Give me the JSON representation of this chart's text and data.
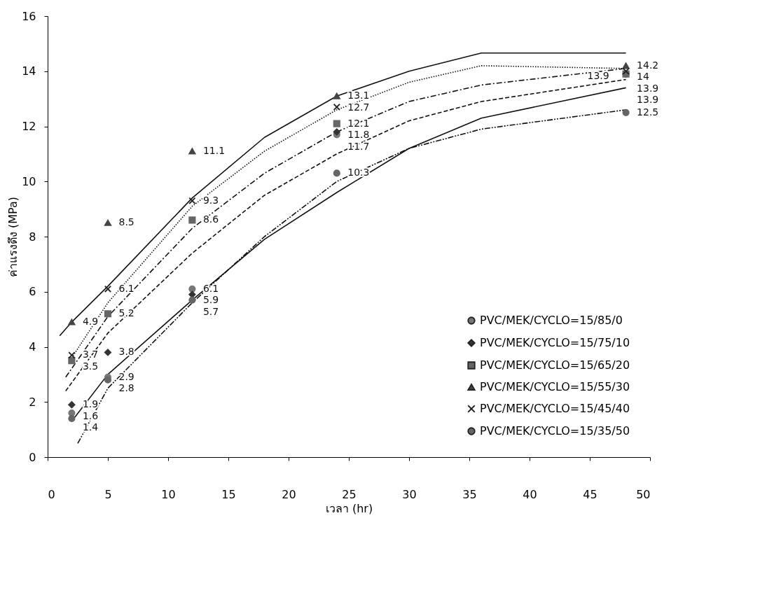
{
  "chart_data": {
    "type": "scatter",
    "xlabel": "เวลา (hr)",
    "ylabel": "ค่าแรงดึง (MPa)",
    "x": [
      2,
      5,
      12,
      24,
      48
    ],
    "xlim": [
      0,
      50
    ],
    "xticks": [
      0,
      5,
      10,
      15,
      20,
      25,
      30,
      35,
      40,
      45,
      50
    ],
    "ylim": [
      0,
      16
    ],
    "yticks": [
      0,
      2,
      4,
      6,
      8,
      10,
      12,
      14,
      16
    ],
    "grid": false,
    "legend": "bottom right",
    "series": [
      {
        "name": "PVC/MEK/CYCLO=15/85/0",
        "color": "#777777",
        "marker": "circle",
        "values": [
          1.6,
          2.9,
          6.1,
          11.7,
          13.9
        ],
        "value_labels": [
          "1.6",
          "2.9",
          "6.1",
          "11.7",
          "13.9"
        ]
      },
      {
        "name": "PVC/MEK/CYCLO=15/75/10",
        "color": "#333333",
        "marker": "diamond",
        "values": [
          1.9,
          3.8,
          5.9,
          11.8,
          13.9
        ],
        "value_labels": [
          "1.9",
          "3.8",
          "5.9",
          "11.8",
          "13.9"
        ]
      },
      {
        "name": "PVC/MEK/CYCLO=15/65/20",
        "color": "#666666",
        "marker": "square",
        "values": [
          3.5,
          5.2,
          8.6,
          12.1,
          13.9
        ],
        "value_labels": [
          "3.5",
          "5.2",
          "8.6",
          "12.1",
          "13.9"
        ]
      },
      {
        "name": "PVC/MEK/CYCLO=15/55/30",
        "color": "#444444",
        "marker": "triangle",
        "values": [
          4.9,
          8.5,
          11.1,
          13.1,
          14.2
        ],
        "value_labels": [
          "4.9",
          "8.5",
          "11.1",
          "13.1",
          "14.2"
        ]
      },
      {
        "name": "PVC/MEK/CYCLO=15/45/40",
        "color": "#222222",
        "marker": "cross",
        "values": [
          3.7,
          6.1,
          9.3,
          12.7,
          14
        ],
        "value_labels": [
          "3.7",
          "6.1",
          "9.3",
          "12.7",
          "14"
        ]
      },
      {
        "name": "PVC/MEK/CYCLO=15/35/50",
        "color": "#666666",
        "marker": "circle",
        "values": [
          1.4,
          2.8,
          5.7,
          10.3,
          12.5
        ],
        "value_labels": [
          "1.4",
          "2.8",
          "5.7",
          "10.3",
          "12.5"
        ]
      },
      {
        "type": "line",
        "color": "#111111",
        "line_style": "solid",
        "x": [
          2,
          5,
          12,
          18,
          24,
          30,
          36,
          48
        ],
        "values": [
          1.3,
          3.0,
          5.7,
          7.9,
          9.6,
          11.2,
          12.3,
          13.4
        ]
      },
      {
        "type": "line",
        "color": "#111111",
        "line_style": "dashed",
        "x": [
          1.5,
          5,
          12,
          18,
          24,
          30,
          36,
          48
        ],
        "values": [
          2.4,
          4.5,
          7.4,
          9.5,
          11.0,
          12.2,
          12.9,
          13.7
        ]
      },
      {
        "type": "line",
        "color": "#111111",
        "line_style": "dashdot",
        "x": [
          1.5,
          5,
          12,
          18,
          24,
          30,
          36,
          48
        ],
        "values": [
          2.9,
          5.1,
          8.3,
          10.3,
          11.8,
          12.9,
          13.5,
          14.1
        ]
      },
      {
        "type": "line",
        "color": "#111111",
        "line_style": "solid",
        "x": [
          1,
          2,
          5,
          12,
          18,
          24,
          30,
          36,
          48
        ],
        "values": [
          4.4,
          4.9,
          6.2,
          9.4,
          11.6,
          13.1,
          14.0,
          14.66,
          14.66
        ]
      },
      {
        "type": "line",
        "color": "#111111",
        "line_style": "dotted",
        "x": [
          2,
          5,
          12,
          18,
          24,
          30,
          36,
          48
        ],
        "values": [
          3.6,
          5.6,
          9.1,
          11.1,
          12.6,
          13.6,
          14.2,
          14.1
        ]
      },
      {
        "type": "line",
        "color": "#111111",
        "line_style": "dashdotdot",
        "x": [
          2.5,
          5,
          12,
          18,
          24,
          30,
          36,
          48
        ],
        "values": [
          0.5,
          2.5,
          5.6,
          8.0,
          10.0,
          11.2,
          11.9,
          12.6
        ]
      }
    ]
  }
}
